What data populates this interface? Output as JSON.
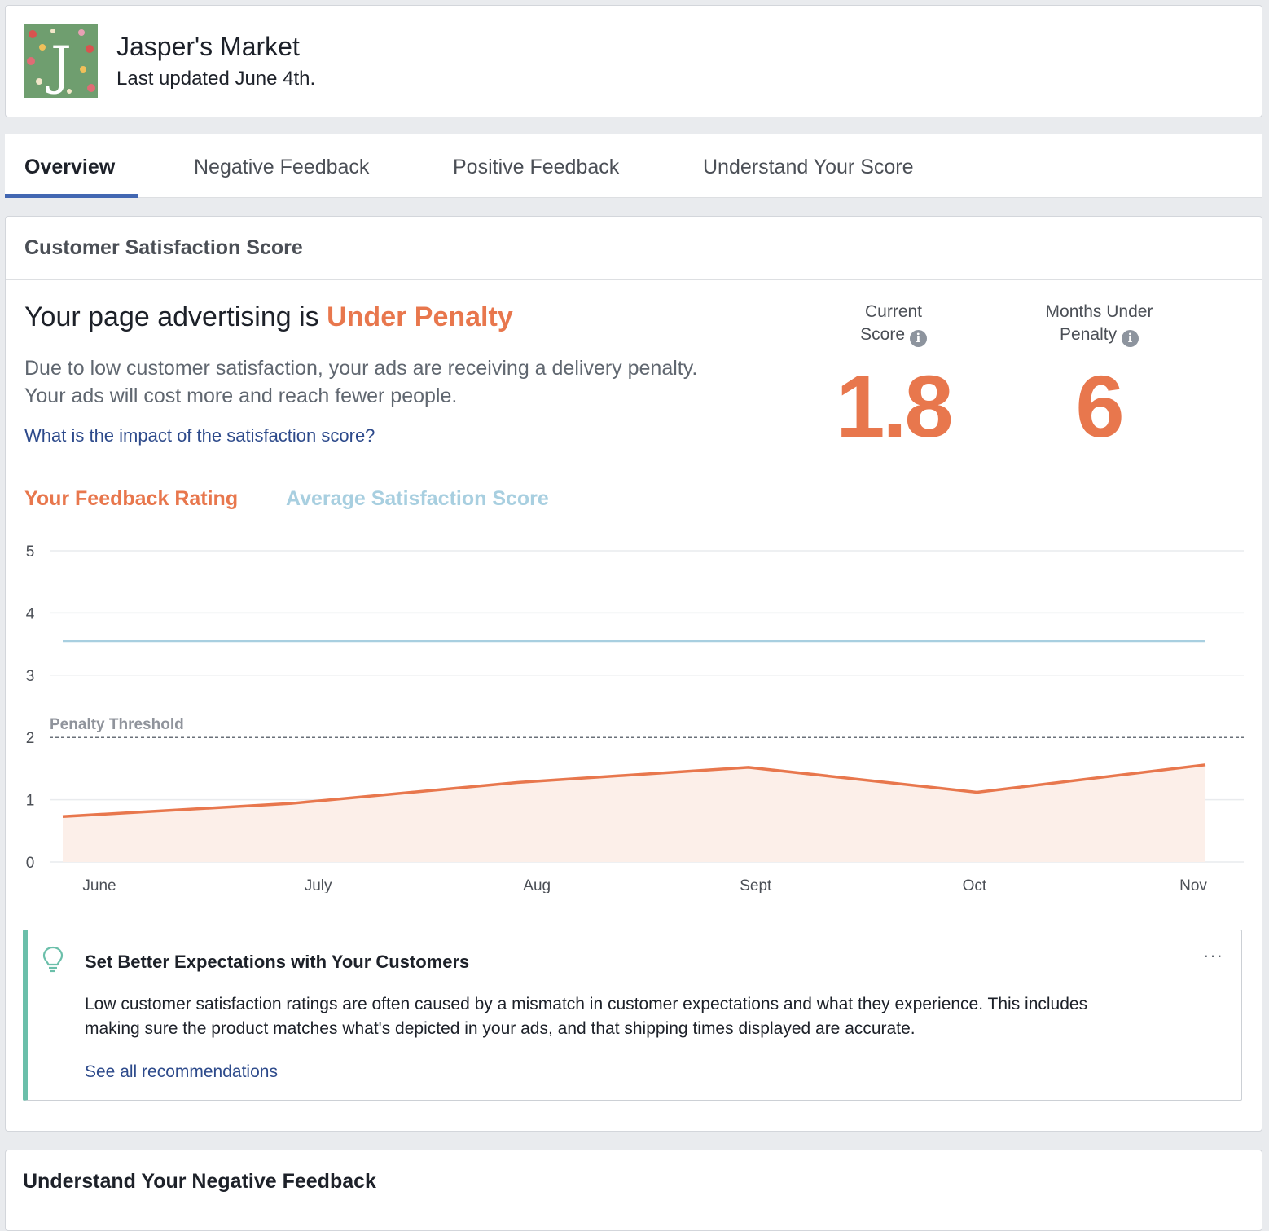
{
  "header": {
    "page_name": "Jasper's Market",
    "last_updated": "Last updated June 4th.",
    "avatar_letter": "J"
  },
  "tabs": [
    {
      "label": "Overview",
      "active": true
    },
    {
      "label": "Negative Feedback",
      "active": false
    },
    {
      "label": "Positive Feedback",
      "active": false
    },
    {
      "label": "Understand Your Score",
      "active": false
    }
  ],
  "score_card": {
    "title": "Customer Satisfaction Score",
    "status_prefix": "Your page advertising is ",
    "status_value": "Under Penalty",
    "description_line_1": "Due to low customer satisfaction, your ads are receiving a delivery penalty.",
    "description_line_2": "Your ads will cost more and reach fewer people.",
    "impact_link": "What is the impact of the satisfaction score?",
    "current_score": {
      "label_line_1": "Current",
      "label_line_2": "Score",
      "value": "1.8"
    },
    "months_under_penalty": {
      "label_line_1": "Months Under",
      "label_line_2": "Penalty",
      "value": "6"
    },
    "legend": {
      "rating": "Your Feedback Rating",
      "average": "Average Satisfaction Score"
    }
  },
  "chart_data": {
    "type": "line",
    "categories": [
      "June",
      "July",
      "Aug",
      "Sept",
      "Oct",
      "Nov"
    ],
    "y_ticks": [
      "0",
      "1",
      "2",
      "3",
      "4",
      "5"
    ],
    "ylim": [
      0,
      5
    ],
    "series": [
      {
        "name": "Your Feedback Rating",
        "values": [
          0.73,
          0.94,
          1.28,
          1.52,
          1.12,
          1.56
        ],
        "color": "#e8774d",
        "fill": "#fcefe9"
      },
      {
        "name": "Average Satisfaction Score",
        "values": [
          3.55,
          3.55,
          3.55,
          3.55,
          3.55,
          3.55
        ],
        "color": "#a8cfe0"
      }
    ],
    "threshold": {
      "label": "Penalty Threshold",
      "value": 2
    },
    "grid": true
  },
  "tip": {
    "title": "Set Better Expectations with Your Customers",
    "body_line_1": "Low customer satisfaction ratings are often caused by a mismatch in customer expectations and what they experience. This includes",
    "body_line_2": "making sure the product matches what's depicted in your ads, and that shipping times displayed are accurate.",
    "link": "See all recommendations",
    "menu": "···"
  },
  "negative_section": {
    "title": "Understand Your Negative Feedback"
  },
  "icons": {
    "info": "i",
    "bulb": "lightbulb-icon"
  }
}
